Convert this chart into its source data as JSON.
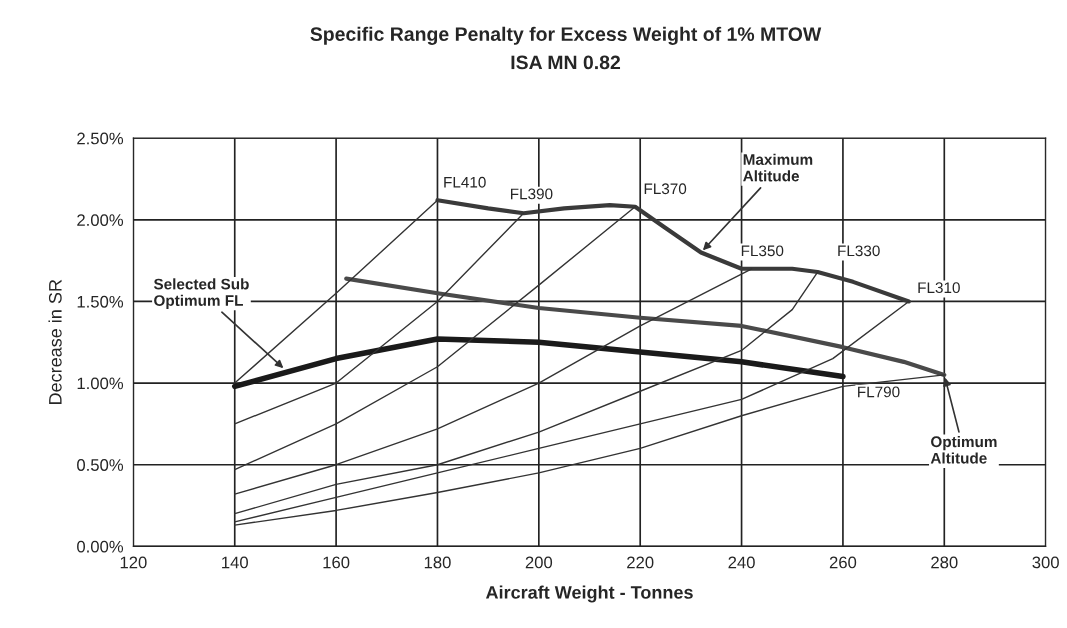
{
  "chart_data": {
    "type": "line",
    "title": "Specific Range Penalty for Excess Weight of 1% MTOW",
    "subtitle": "ISA MN 0.82",
    "xlabel": "Aircraft Weight - Tonnes",
    "ylabel": "Decrease in SR",
    "xlim": [
      120,
      300
    ],
    "xticks": [
      120,
      140,
      160,
      180,
      200,
      220,
      240,
      260,
      280,
      300
    ],
    "ylim": [
      0,
      2.5
    ],
    "yticks": [
      {
        "value": 0,
        "label": "0.00%"
      },
      {
        "value": 0.5,
        "label": "0.50%"
      },
      {
        "value": 1.0,
        "label": "1.00%"
      },
      {
        "value": 1.5,
        "label": "1.50%"
      },
      {
        "value": 2.0,
        "label": "2.00%"
      },
      {
        "value": 2.5,
        "label": "2.50%"
      }
    ],
    "grid": true,
    "marker": "none",
    "line_style": "solid",
    "series": [
      {
        "color": "#3a3a3a",
        "x": [
          180,
          190,
          197,
          205,
          214,
          219,
          225,
          232,
          240,
          250,
          255,
          262,
          273
        ],
        "values": [
          2.12,
          2.07,
          2.04,
          2.07,
          2.09,
          2.08,
          1.95,
          1.8,
          1.7,
          1.7,
          1.68,
          1.62,
          1.5
        ]
      },
      {
        "color": "#4a4a4a",
        "x": [
          162,
          180,
          200,
          220,
          240,
          260,
          272,
          280
        ],
        "values": [
          1.64,
          1.55,
          1.46,
          1.4,
          1.35,
          1.22,
          1.13,
          1.05
        ]
      },
      {
        "color": "#1a1a1a",
        "x": [
          140,
          160,
          180,
          200,
          220,
          240,
          260
        ],
        "values": [
          0.98,
          1.15,
          1.27,
          1.25,
          1.19,
          1.13,
          1.04
        ]
      },
      {
        "color": "#333333",
        "x": [
          140,
          160,
          180
        ],
        "values": [
          1.0,
          1.55,
          2.12
        ]
      },
      {
        "color": "#333333",
        "x": [
          140,
          160,
          180,
          197
        ],
        "values": [
          0.75,
          1.0,
          1.5,
          2.04
        ]
      },
      {
        "color": "#333333",
        "x": [
          140,
          160,
          180,
          200,
          219
        ],
        "values": [
          0.47,
          0.75,
          1.1,
          1.6,
          2.08
        ]
      },
      {
        "color": "#333333",
        "x": [
          140,
          160,
          180,
          200,
          220,
          242
        ],
        "values": [
          0.32,
          0.5,
          0.72,
          1.0,
          1.35,
          1.7
        ]
      },
      {
        "color": "#333333",
        "x": [
          140,
          160,
          180,
          200,
          220,
          240,
          250,
          255
        ],
        "values": [
          0.2,
          0.38,
          0.5,
          0.7,
          0.95,
          1.2,
          1.45,
          1.68
        ]
      },
      {
        "color": "#333333",
        "x": [
          140,
          160,
          180,
          200,
          220,
          240,
          258,
          273
        ],
        "values": [
          0.15,
          0.3,
          0.45,
          0.6,
          0.75,
          0.9,
          1.15,
          1.5
        ]
      },
      {
        "color": "#333333",
        "x": [
          140,
          160,
          180,
          200,
          220,
          240,
          260,
          280
        ],
        "values": [
          0.13,
          0.22,
          0.33,
          0.45,
          0.6,
          0.8,
          0.98,
          1.05
        ]
      }
    ],
    "annotations": [
      {
        "text": "FL410",
        "x": 180,
        "y": 2.12
      },
      {
        "text": "FL390",
        "x": 197,
        "y": 2.04
      },
      {
        "text": "FL370",
        "x": 219,
        "y": 2.08
      },
      {
        "text": "FL350",
        "x": 242,
        "y": 1.7
      },
      {
        "text": "FL330",
        "x": 255,
        "y": 1.7
      },
      {
        "text": "FL310",
        "x": 273,
        "y": 1.5
      },
      {
        "text": "FL790",
        "x": 260,
        "y": 1.04
      },
      {
        "text": "Selected Sub\nOptimum FL",
        "x": 150,
        "y": 1.08
      },
      {
        "text": "Maximum\nAltitude",
        "x": 232,
        "y": 1.8
      },
      {
        "text": "Optimum\nAltitude",
        "x": 280,
        "y": 1.05
      }
    ]
  }
}
